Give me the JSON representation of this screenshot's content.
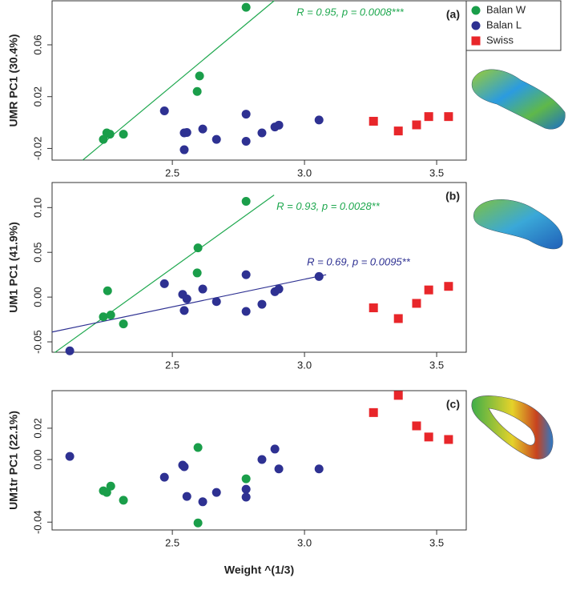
{
  "chart_data": [
    {
      "type": "scatter",
      "y_label": "UMR PC1 (30.4%)",
      "panel_label": "(a)",
      "xlim": [
        2.045,
        3.612
      ],
      "ylim": [
        -0.029,
        0.094
      ],
      "xticks": [
        2.5,
        {
          "value": 3,
          "label": "3.0"
        },
        3.5
      ],
      "yticks": [
        -0.02,
        0.02,
        0.06
      ],
      "series": [
        {
          "name": "Balan W",
          "color": "#1a9e4a",
          "marker": "circle",
          "x": [
            2.239,
            2.252,
            2.264,
            2.315,
            2.594,
            2.603,
            2.779
          ],
          "values": [
            -0.013,
            -0.008,
            -0.009,
            -0.009,
            0.024,
            0.036,
            0.089
          ]
        },
        {
          "name": "Balan L",
          "color": "#2e3192",
          "marker": "circle",
          "x": [
            2.47,
            2.545,
            2.545,
            2.555,
            2.615,
            2.667,
            2.779,
            2.779,
            2.839,
            2.888,
            2.903,
            3.055
          ],
          "values": [
            0.009,
            -0.008,
            -0.021,
            -0.0077,
            -0.005,
            -0.013,
            0.0065,
            -0.0145,
            -0.008,
            -0.0034,
            -0.002,
            0.002
          ]
        },
        {
          "name": "Swiss",
          "color": "#e8262a",
          "marker": "square",
          "x": [
            3.261,
            3.355,
            3.424,
            3.47,
            3.545
          ],
          "values": [
            0.001,
            -0.0065,
            -0.0018,
            0.0046,
            0.0046
          ]
        }
      ],
      "fits": [
        {
          "color": "#1fa84f",
          "x": [
            2.161,
            2.885
          ],
          "values": [
            -0.029,
            0.094
          ],
          "label": "R = 0.95, p = 0.0008***"
        }
      ]
    },
    {
      "type": "scatter",
      "y_label": "UM1 PC1 (41.9%)",
      "panel_label": "(b)",
      "xlim": [
        2.045,
        3.612
      ],
      "ylim": [
        -0.0616,
        0.128
      ],
      "xticks": [
        2.5,
        {
          "value": 3,
          "label": "3.0"
        },
        3.5
      ],
      "yticks": [
        {
          "value": 0.1,
          "label": "0.10"
        },
        0.05,
        {
          "value": 0,
          "label": "0.00"
        },
        -0.05
      ],
      "series": [
        {
          "color": "#1a9e4a",
          "marker": "circle",
          "x": [
            2.239,
            2.255,
            2.267,
            2.315,
            2.594,
            2.597,
            2.779
          ],
          "values": [
            -0.022,
            0.007,
            -0.02,
            -0.03,
            0.027,
            0.055,
            0.107
          ]
        },
        {
          "color": "#2e3192",
          "marker": "circle",
          "x": [
            2.112,
            2.47,
            2.539,
            2.545,
            2.555,
            2.615,
            2.667,
            2.779,
            2.779,
            2.839,
            2.888,
            2.903,
            3.055
          ],
          "values": [
            -0.06,
            0.015,
            0.003,
            -0.015,
            -0.002,
            0.009,
            -0.005,
            0.025,
            -0.016,
            -0.008,
            0.006,
            0.009,
            0.023
          ]
        },
        {
          "color": "#e8262a",
          "marker": "square",
          "x": [
            3.261,
            3.355,
            3.424,
            3.47,
            3.545
          ],
          "values": [
            -0.012,
            -0.024,
            -0.007,
            0.008,
            0.012
          ]
        }
      ],
      "fits": [
        {
          "color": "#1fa84f",
          "x": [
            2.055,
            2.885
          ],
          "values": [
            -0.062,
            0.114
          ],
          "label": "R = 0.93, p = 0.0028**"
        },
        {
          "color": "#2e3192",
          "x": [
            2.045,
            3.082
          ],
          "values": [
            -0.039,
            0.025
          ],
          "label": "R = 0.69, p = 0.0095**"
        }
      ]
    },
    {
      "type": "scatter",
      "y_label": "UM1tr PC1 (22.1%)",
      "x_label": "Weight ^(1/3)",
      "panel_label": "(c)",
      "xlim": [
        2.045,
        3.612
      ],
      "ylim": [
        -0.045,
        0.044
      ],
      "xticks": [
        2.5,
        {
          "value": 3,
          "label": "3.0"
        },
        3.5
      ],
      "yticks": [
        0.02,
        {
          "value": 0,
          "label": "0.00"
        },
        -0.04
      ],
      "series": [
        {
          "color": "#1a9e4a",
          "marker": "circle",
          "x": [
            2.239,
            2.252,
            2.267,
            2.315,
            2.597,
            2.597,
            2.779
          ],
          "values": [
            -0.02,
            -0.021,
            -0.017,
            -0.026,
            0.0077,
            -0.0405,
            -0.0123
          ]
        },
        {
          "color": "#2e3192",
          "marker": "circle",
          "x": [
            2.112,
            2.47,
            2.539,
            2.545,
            2.555,
            2.615,
            2.667,
            2.779,
            2.779,
            2.839,
            2.888,
            2.903,
            3.055
          ],
          "values": [
            0.002,
            -0.0113,
            -0.0036,
            -0.0046,
            -0.0236,
            -0.027,
            -0.021,
            -0.019,
            -0.024,
            0.0,
            0.0067,
            -0.006,
            -0.006
          ]
        },
        {
          "color": "#e8262a",
          "marker": "square",
          "x": [
            3.261,
            3.355,
            3.424,
            3.47,
            3.545
          ],
          "values": [
            0.03,
            0.041,
            0.0215,
            0.0144,
            0.0128
          ]
        }
      ]
    }
  ]
}
